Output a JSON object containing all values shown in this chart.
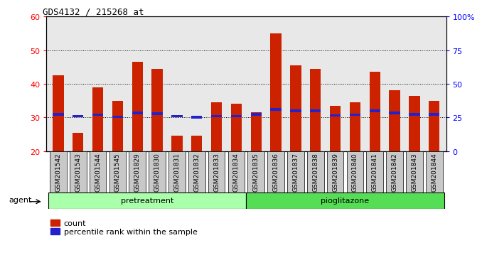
{
  "title": "GDS4132 / 215268_at",
  "samples": [
    "GSM201542",
    "GSM201543",
    "GSM201544",
    "GSM201545",
    "GSM201829",
    "GSM201830",
    "GSM201831",
    "GSM201832",
    "GSM201833",
    "GSM201834",
    "GSM201835",
    "GSM201836",
    "GSM201837",
    "GSM201838",
    "GSM201839",
    "GSM201840",
    "GSM201841",
    "GSM201842",
    "GSM201843",
    "GSM201844"
  ],
  "count_values": [
    42.5,
    25.5,
    39.0,
    35.0,
    46.5,
    44.5,
    24.5,
    24.5,
    34.5,
    34.0,
    31.5,
    55.0,
    45.5,
    44.5,
    33.5,
    34.5,
    43.5,
    38.0,
    36.5,
    35.0
  ],
  "percentile_values": [
    27.5,
    26.0,
    27.0,
    25.5,
    28.5,
    28.0,
    26.0,
    25.0,
    26.0,
    26.0,
    27.5,
    31.0,
    30.0,
    30.0,
    26.5,
    27.0,
    30.0,
    28.5,
    27.5,
    27.5
  ],
  "n_pretreatment": 10,
  "n_pioglitazone": 10,
  "ylim_left": [
    20,
    60
  ],
  "ylim_right": [
    0,
    100
  ],
  "bar_color": "#cc2200",
  "percentile_color": "#2222cc",
  "plot_bg": "#e8e8e8",
  "tick_bg": "#c8c8c8",
  "pretreatment_color": "#aaffaa",
  "pioglitazone_color": "#55dd55",
  "bar_width": 0.55,
  "agent_label": "agent",
  "pretreatment_label": "pretreatment",
  "pioglitazone_label": "pioglitazone",
  "count_legend": "count",
  "percentile_legend": "percentile rank within the sample",
  "right_yticks": [
    0,
    25,
    50,
    75,
    100
  ],
  "right_yticklabels": [
    "0",
    "25",
    "50",
    "75",
    "100%"
  ],
  "left_yticks": [
    20,
    30,
    40,
    50,
    60
  ]
}
